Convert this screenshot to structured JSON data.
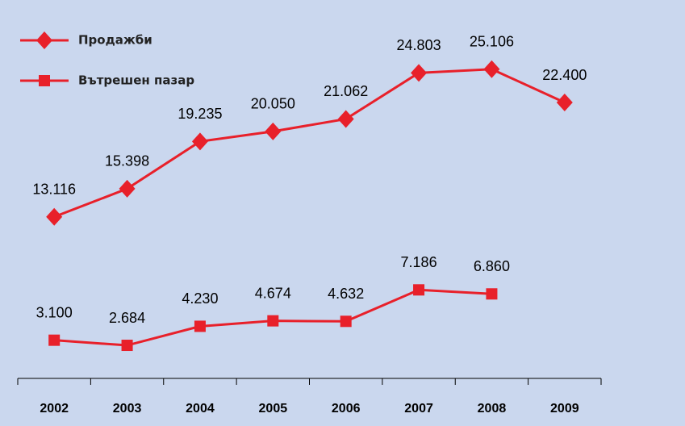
{
  "chart_data": {
    "type": "line",
    "categories": [
      "2002",
      "2003",
      "2004",
      "2005",
      "2006",
      "2007",
      "2008",
      "2009"
    ],
    "series": [
      {
        "name": "Продажби",
        "color": "#e8202a",
        "marker": "diamond",
        "values": [
          13.116,
          15.398,
          19.235,
          20.05,
          21.062,
          24.803,
          25.106,
          22.4
        ],
        "value_labels": [
          "13.116",
          "15.398",
          "19.235",
          "20.050",
          "21.062",
          "24.803",
          "25.106",
          "22.400"
        ]
      },
      {
        "name": "Вътрешен пазар",
        "color": "#e8202a",
        "marker": "square",
        "values": [
          3.1,
          2.684,
          4.23,
          4.674,
          4.632,
          7.186,
          6.86,
          null
        ],
        "value_labels": [
          "3.100",
          "2.684",
          "4.230",
          "4.674",
          "4.632",
          "7.186",
          "6.860",
          null
        ]
      }
    ],
    "ylim": [
      0,
      30
    ],
    "legend": "top-left",
    "background": "#cad7ee"
  }
}
